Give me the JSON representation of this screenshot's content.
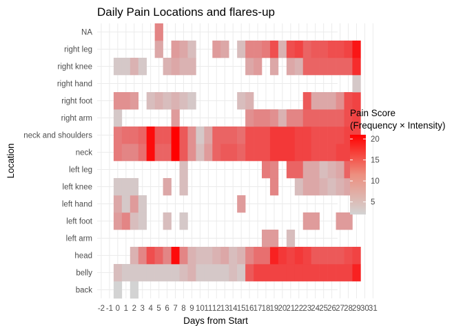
{
  "chart_data": {
    "type": "heatmap",
    "title": "Daily Pain Locations and flares-up",
    "xlabel": "Days from Start",
    "ylabel": "Location",
    "x_ticks": [
      "-2",
      "-1",
      "0",
      "1",
      "2",
      "3",
      "4",
      "5",
      "6",
      "7",
      "8",
      "9",
      "10",
      "11",
      "12",
      "13",
      "14",
      "15",
      "16",
      "17",
      "18",
      "19",
      "20",
      "21",
      "22",
      "23",
      "24",
      "25",
      "26",
      "27",
      "28",
      "29",
      "30",
      "31"
    ],
    "xlim": [
      -2,
      31
    ],
    "categories": [
      "back",
      "belly",
      "head",
      "left arm",
      "left foot",
      "left hand",
      "left knee",
      "left leg",
      "neck",
      "neck and shoulders",
      "right arm",
      "right foot",
      "right hand",
      "right knee",
      "right leg",
      "NA"
    ],
    "legend": {
      "title_lines": [
        "Pain Score",
        "(Frequency × Intensity)"
      ],
      "ticks": [
        5,
        10,
        15,
        20
      ],
      "range": [
        2,
        21
      ],
      "low_color": "#d3d3d3",
      "high_color": "#ff0000"
    },
    "grid": true,
    "values": {
      "back": {
        "0": 2,
        "2": 2
      },
      "belly": {
        "0": 4,
        "1": 3,
        "2": 3,
        "3": 3,
        "4": 3,
        "5": 3,
        "6": 3,
        "7": 3,
        "8": 4,
        "9": 5,
        "10": 3,
        "11": 3,
        "12": 3,
        "13": 3,
        "14": 4,
        "15": 3,
        "16": 13,
        "17": 15,
        "18": 15,
        "19": 15,
        "20": 15,
        "21": 15,
        "22": 15,
        "23": 15,
        "24": 15,
        "25": 15,
        "26": 15,
        "27": 15,
        "28": 15,
        "29": 18
      },
      "head": {
        "2": 5,
        "3": 9,
        "4": 14,
        "5": 12,
        "6": 9,
        "7": 20,
        "8": 9,
        "9": 5,
        "10": 4,
        "11": 4,
        "12": 5,
        "13": 6,
        "14": 4,
        "15": 5,
        "16": 9,
        "17": 11,
        "18": 11,
        "19": 18,
        "20": 16,
        "21": 15,
        "22": 16,
        "23": 15,
        "24": 13,
        "25": 13,
        "26": 13,
        "27": 13,
        "28": 14,
        "29": 15
      },
      "left arm": {
        "18": 7,
        "19": 7,
        "21": 4
      },
      "left foot": {
        "0": 7,
        "1": 9,
        "2": 4,
        "3": 3,
        "6": 4,
        "8": 3,
        "23": 7,
        "24": 7,
        "27": 7,
        "28": 7
      },
      "left hand": {
        "0": 6,
        "1": 3,
        "2": 7,
        "3": 3,
        "15": 7
      },
      "left knee": {
        "0": 3,
        "1": 3,
        "2": 3,
        "6": 6,
        "8": 4,
        "19": 9,
        "22": 4,
        "23": 6,
        "24": 6,
        "25": 5,
        "26": 4,
        "27": 5,
        "28": 6,
        "29": 15
      },
      "left leg": {
        "8": 4,
        "18": 10,
        "19": 9,
        "21": 12,
        "22": 12,
        "23": 6,
        "24": 6,
        "25": 4,
        "26": 5,
        "27": 6,
        "28": 12,
        "29": 15
      },
      "neck": {
        "0": 10,
        "1": 9,
        "2": 9,
        "3": 11,
        "4": 20,
        "5": 12,
        "6": 12,
        "7": 21,
        "8": 13,
        "9": 8,
        "10": 4,
        "11": 7,
        "12": 12,
        "13": 13,
        "14": 13,
        "15": 12,
        "16": 14,
        "17": 14,
        "18": 14,
        "19": 16,
        "20": 16,
        "21": 16,
        "22": 15,
        "23": 15,
        "24": 14,
        "25": 14,
        "26": 14,
        "27": 15,
        "28": 15,
        "29": 15
      },
      "neck and shoulders": {
        "0": 10,
        "1": 11,
        "2": 11,
        "3": 12,
        "4": 20,
        "5": 13,
        "6": 13,
        "7": 21,
        "8": 13,
        "9": 8,
        "10": 3,
        "11": 6,
        "12": 12,
        "13": 12,
        "14": 12,
        "15": 11,
        "16": 14,
        "17": 14,
        "18": 14,
        "19": 16,
        "20": 16,
        "21": 16,
        "22": 15,
        "23": 15,
        "24": 14,
        "25": 14,
        "26": 14,
        "27": 14,
        "28": 15,
        "29": 15
      },
      "right arm": {
        "0": 3,
        "7": 7,
        "16": 8,
        "17": 9,
        "18": 9,
        "19": 8,
        "20": 5,
        "21": 9,
        "22": 9,
        "23": 12,
        "24": 12,
        "25": 12,
        "26": 12,
        "27": 12,
        "28": 14,
        "29": 15
      },
      "right foot": {
        "0": 8,
        "1": 8,
        "2": 7,
        "4": 4,
        "5": 5,
        "6": 4,
        "7": 5,
        "8": 4,
        "9": 3,
        "15": 4,
        "16": 5,
        "23": 13,
        "24": 6,
        "25": 6,
        "26": 6,
        "27": 8,
        "28": 14,
        "29": 15
      },
      "right hand": {
        "29": 3
      },
      "right knee": {
        "0": 3,
        "1": 3,
        "2": 5,
        "3": 3,
        "6": 5,
        "7": 6,
        "8": 5,
        "9": 5,
        "16": 6,
        "17": 7,
        "19": 6,
        "21": 6,
        "22": 5,
        "23": 12,
        "24": 12,
        "25": 12,
        "26": 12,
        "27": 12,
        "28": 12,
        "29": 17
      },
      "right leg": {
        "5": 6,
        "7": 7,
        "8": 6,
        "9": 4,
        "12": 7,
        "13": 6,
        "15": 4,
        "16": 9,
        "17": 9,
        "18": 10,
        "19": 14,
        "20": 5,
        "21": 14,
        "22": 15,
        "23": 12,
        "24": 13,
        "25": 13,
        "26": 14,
        "27": 14,
        "28": 15,
        "29": 19
      },
      "NA": {
        "5": 9
      }
    }
  }
}
